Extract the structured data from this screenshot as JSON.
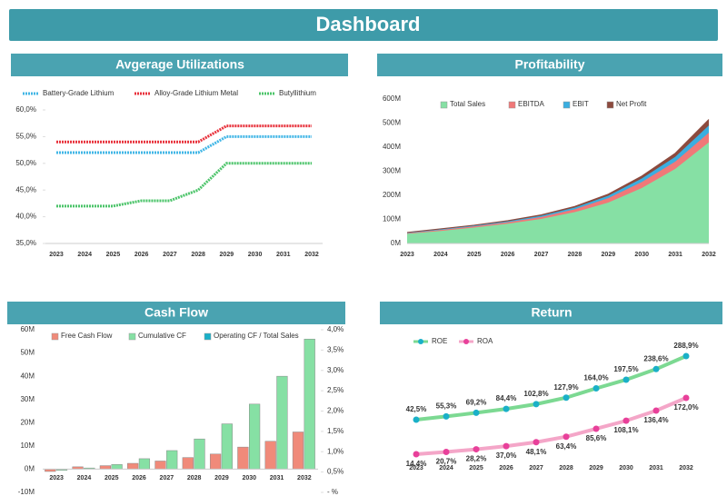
{
  "title": "Dashboard",
  "chart_data": [
    {
      "type": "line",
      "title": "Avgerage Utilizations",
      "categories": [
        "2023",
        "2024",
        "2025",
        "2026",
        "2027",
        "2028",
        "2029",
        "2030",
        "2031",
        "2032"
      ],
      "series": [
        {
          "name": "Battery-Grade Lithium",
          "color": "#41b6e6",
          "values": [
            52,
            52,
            52,
            52,
            52,
            52,
            55,
            55,
            55,
            55
          ]
        },
        {
          "name": "Alloy-Grade Lithium Metal",
          "color": "#e8323c",
          "values": [
            54,
            54,
            54,
            54,
            54,
            54,
            57,
            57,
            57,
            57
          ]
        },
        {
          "name": "Butyllithium",
          "color": "#4cc46a",
          "values": [
            42,
            42,
            42,
            43,
            43,
            45,
            50,
            50,
            50,
            50
          ]
        }
      ],
      "ylim": [
        35,
        60
      ],
      "yticks": [
        {
          "value": 35,
          "label": "35,0%"
        },
        {
          "value": 40,
          "label": "40,0%"
        },
        {
          "value": 45,
          "label": "45,0%"
        },
        {
          "value": 50,
          "label": "50,0%"
        },
        {
          "value": 55,
          "label": "55,0%"
        },
        {
          "value": 60,
          "label": "60,0%"
        }
      ]
    },
    {
      "type": "stacked-area",
      "title": "Profitability",
      "categories": [
        "2023",
        "2024",
        "2025",
        "2026",
        "2027",
        "2028",
        "2029",
        "2030",
        "2031",
        "2032"
      ],
      "series": [
        {
          "name": "Total Sales",
          "color": "#86e0a4",
          "values": [
            40,
            52,
            66,
            82,
            102,
            130,
            170,
            230,
            310,
            420
          ]
        },
        {
          "name": "EBITDA",
          "color": "#f07878",
          "values": [
            3,
            4,
            5,
            6,
            8,
            12,
            18,
            25,
            30,
            40
          ]
        },
        {
          "name": "EBIT",
          "color": "#3aaee0",
          "values": [
            2,
            3,
            3,
            4,
            5,
            7,
            10,
            15,
            20,
            30
          ]
        },
        {
          "name": "Net Profit",
          "color": "#8c4a3e",
          "values": [
            1,
            2,
            2,
            3,
            4,
            5,
            7,
            10,
            15,
            25
          ]
        }
      ],
      "ylim": [
        0,
        600
      ],
      "yticks": [
        {
          "value": 0,
          "label": "0M"
        },
        {
          "value": 100,
          "label": "100M"
        },
        {
          "value": 200,
          "label": "200M"
        },
        {
          "value": 300,
          "label": "300M"
        },
        {
          "value": 400,
          "label": "400M"
        },
        {
          "value": 500,
          "label": "500M"
        },
        {
          "value": 600,
          "label": "600M"
        }
      ]
    },
    {
      "type": "bar",
      "title": "Cash Flow",
      "categories": [
        "2023",
        "2024",
        "2025",
        "2026",
        "2027",
        "2028",
        "2029",
        "2030",
        "2031",
        "2032"
      ],
      "series": [
        {
          "name": "Free Cash Flow",
          "color": "#f08a7a",
          "values": [
            -1,
            1,
            1.5,
            2.5,
            3.5,
            5,
            6.5,
            9.5,
            12,
            16
          ]
        },
        {
          "name": "Cumulative CF",
          "color": "#86e0a4",
          "values": [
            -0.5,
            0.5,
            2,
            4.5,
            8,
            13,
            19.5,
            28,
            40,
            56
          ]
        },
        {
          "name": "Operating CF / Total Sales",
          "color": "#1ab0c8",
          "axis": "y2",
          "values": [
            null,
            null,
            null,
            null,
            null,
            null,
            null,
            null,
            null,
            null
          ]
        }
      ],
      "ylim": [
        -10,
        60
      ],
      "yticks": [
        {
          "value": -10,
          "label": "-10M"
        },
        {
          "value": 0,
          "label": "0M"
        },
        {
          "value": 10,
          "label": "10M"
        },
        {
          "value": 20,
          "label": "20M"
        },
        {
          "value": 30,
          "label": "30M"
        },
        {
          "value": 40,
          "label": "40M"
        },
        {
          "value": 50,
          "label": "50M"
        },
        {
          "value": 60,
          "label": "60M"
        }
      ],
      "y2lim": [
        0,
        4
      ],
      "y2ticks": [
        {
          "value": 0,
          "label": "- %"
        },
        {
          "value": 0.5,
          "label": "0,5%"
        },
        {
          "value": 1,
          "label": "1,0%"
        },
        {
          "value": 1.5,
          "label": "1,5%"
        },
        {
          "value": 2,
          "label": "2,0%"
        },
        {
          "value": 2.5,
          "label": "2,5%"
        },
        {
          "value": 3,
          "label": "3,0%"
        },
        {
          "value": 3.5,
          "label": "3,5%"
        },
        {
          "value": 4,
          "label": "4,0%"
        }
      ]
    },
    {
      "type": "return-line",
      "title": "Return",
      "categories": [
        "2023",
        "2024",
        "2025",
        "2026",
        "2027",
        "2028",
        "2029",
        "2030",
        "2031",
        "2032"
      ],
      "series": [
        {
          "name": "ROE",
          "color": "#7cd992",
          "marker_color": "#1ab0c8",
          "values": [
            42.5,
            55.3,
            69.2,
            84.4,
            102.8,
            127.9,
            164.0,
            197.5,
            238.6,
            288.9
          ],
          "value_labels": [
            "42,5%",
            "55,3%",
            "69,2%",
            "84,4%",
            "102,8%",
            "127,9%",
            "164,0%",
            "197,5%",
            "238,6%",
            "288,9%"
          ]
        },
        {
          "name": "ROA",
          "color": "#f4a6c8",
          "marker_color": "#e8409a",
          "values": [
            14.4,
            20.7,
            28.2,
            37.0,
            48.1,
            63.4,
            85.6,
            108.1,
            136.4,
            172.0
          ],
          "value_labels": [
            "14,4%",
            "20,7%",
            "28,2%",
            "37,0%",
            "48,1%",
            "63,4%",
            "85,6%",
            "108,1%",
            "136,4%",
            "172,0%"
          ]
        }
      ]
    }
  ]
}
